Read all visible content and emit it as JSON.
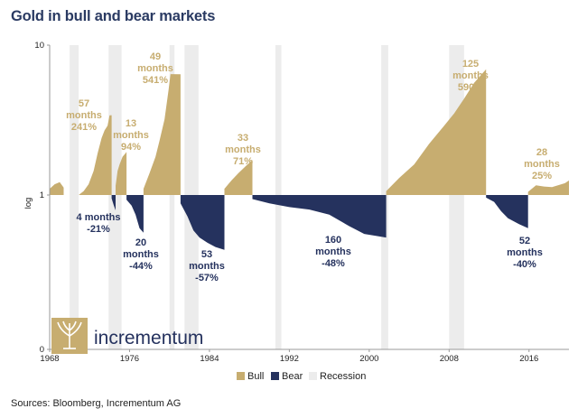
{
  "title": "Gold in bull and bear markets",
  "source": "Sources: Bloomberg, Incrementum AG",
  "logo_text": "incrementum",
  "colors": {
    "bull": "#c7ad70",
    "bear": "#25325e",
    "recession": "#ececec",
    "title": "#2a3a62"
  },
  "chart_data": {
    "type": "area",
    "title": "Gold in bull and bear markets",
    "ylabel": "log",
    "yscale": "log",
    "ylim": [
      0,
      10
    ],
    "y_ticks": [
      "0",
      "1",
      "10"
    ],
    "xlim": [
      1968,
      2020
    ],
    "x_ticks": [
      1968,
      1976,
      1984,
      1992,
      2000,
      2008,
      2016
    ],
    "baseline": 1,
    "legend": {
      "position": "bottom",
      "entries": [
        "Bull",
        "Bear",
        "Recession"
      ]
    },
    "recessions": [
      [
        1970.0,
        1970.9
      ],
      [
        1973.9,
        1975.2
      ],
      [
        1980.0,
        1980.5
      ],
      [
        1981.5,
        1982.9
      ],
      [
        1990.6,
        1991.2
      ],
      [
        2001.2,
        2001.9
      ],
      [
        2008.0,
        2009.5
      ]
    ],
    "annotations": [
      {
        "kind": "bull",
        "lines": [
          "57",
          "months",
          "241%"
        ]
      },
      {
        "kind": "bull",
        "lines": [
          "13",
          "months",
          "94%"
        ]
      },
      {
        "kind": "bull",
        "lines": [
          "49",
          "months",
          "541%"
        ]
      },
      {
        "kind": "bull",
        "lines": [
          "33",
          "months",
          "71%"
        ]
      },
      {
        "kind": "bull",
        "lines": [
          "125",
          "months",
          "590%"
        ]
      },
      {
        "kind": "bull",
        "lines": [
          "28",
          "months",
          "25%"
        ]
      },
      {
        "kind": "bear",
        "lines": [
          "4 months",
          "-21%"
        ]
      },
      {
        "kind": "bear",
        "lines": [
          "20",
          "months",
          "-44%"
        ]
      },
      {
        "kind": "bear",
        "lines": [
          "53",
          "months",
          "-57%"
        ]
      },
      {
        "kind": "bear",
        "lines": [
          "160",
          "months",
          "-48%"
        ]
      },
      {
        "kind": "bear",
        "lines": [
          "52",
          "months",
          "-40%"
        ]
      }
    ],
    "series": [
      {
        "name": "Bull",
        "x": [
          1968.0,
          1968.5,
          1969.0,
          1969.4
        ],
        "y": [
          1.1,
          1.18,
          1.22,
          1.12
        ]
      },
      {
        "name": "Bull",
        "x": [
          1970.9,
          1971.4,
          1971.9,
          1972.4,
          1972.8,
          1973.2,
          1973.5,
          1973.8,
          1974.0,
          1974.2
        ],
        "y": [
          1.0,
          1.06,
          1.18,
          1.45,
          1.9,
          2.4,
          2.7,
          2.9,
          3.4,
          3.41
        ]
      },
      {
        "name": "Bear",
        "x": [
          1974.2,
          1974.4,
          1974.6
        ],
        "y": [
          0.95,
          0.86,
          0.79
        ]
      },
      {
        "name": "Bull",
        "x": [
          1974.6,
          1974.8,
          1975.0,
          1975.3,
          1975.6,
          1975.7
        ],
        "y": [
          1.15,
          1.45,
          1.6,
          1.8,
          1.9,
          1.94
        ]
      },
      {
        "name": "Bear",
        "x": [
          1975.7,
          1976.2,
          1976.6,
          1977.0,
          1977.4
        ],
        "y": [
          0.93,
          0.85,
          0.74,
          0.6,
          0.56
        ]
      },
      {
        "name": "Bull",
        "x": [
          1977.4,
          1978.0,
          1978.6,
          1979.0,
          1979.5,
          1979.9,
          1980.1,
          1981.1
        ],
        "y": [
          1.1,
          1.4,
          1.8,
          2.3,
          3.2,
          5.0,
          6.41,
          6.4
        ]
      },
      {
        "name": "Bear",
        "x": [
          1981.1,
          1981.8,
          1982.4,
          1983.0,
          1983.8,
          1984.6,
          1985.5
        ],
        "y": [
          0.88,
          0.72,
          0.58,
          0.52,
          0.48,
          0.45,
          0.43
        ]
      },
      {
        "name": "Bull",
        "x": [
          1985.5,
          1986.2,
          1986.9,
          1987.6,
          1988.3
        ],
        "y": [
          1.1,
          1.25,
          1.4,
          1.55,
          1.71
        ]
      },
      {
        "name": "Bear",
        "x": [
          1988.3,
          1990.0,
          1992.0,
          1994.0,
          1996.0,
          1998.0,
          1999.5,
          2001.7
        ],
        "y": [
          0.94,
          0.88,
          0.83,
          0.8,
          0.74,
          0.62,
          0.55,
          0.52
        ]
      },
      {
        "name": "Bull",
        "x": [
          2001.7,
          2003.0,
          2004.5,
          2006.0,
          2007.5,
          2008.5,
          2009.5,
          2010.5,
          2011.7
        ],
        "y": [
          1.06,
          1.3,
          1.6,
          2.2,
          2.9,
          3.5,
          4.4,
          5.6,
          6.9
        ]
      },
      {
        "name": "Bear",
        "x": [
          2011.7,
          2012.5,
          2013.2,
          2013.9,
          2015.0,
          2015.9
        ],
        "y": [
          0.96,
          0.9,
          0.78,
          0.7,
          0.64,
          0.6
        ]
      },
      {
        "name": "Bull",
        "x": [
          2015.9,
          2016.7,
          2017.5,
          2018.3,
          2018.9,
          2019.6,
          2020.0
        ],
        "y": [
          1.05,
          1.16,
          1.14,
          1.13,
          1.16,
          1.2,
          1.25
        ]
      }
    ]
  }
}
